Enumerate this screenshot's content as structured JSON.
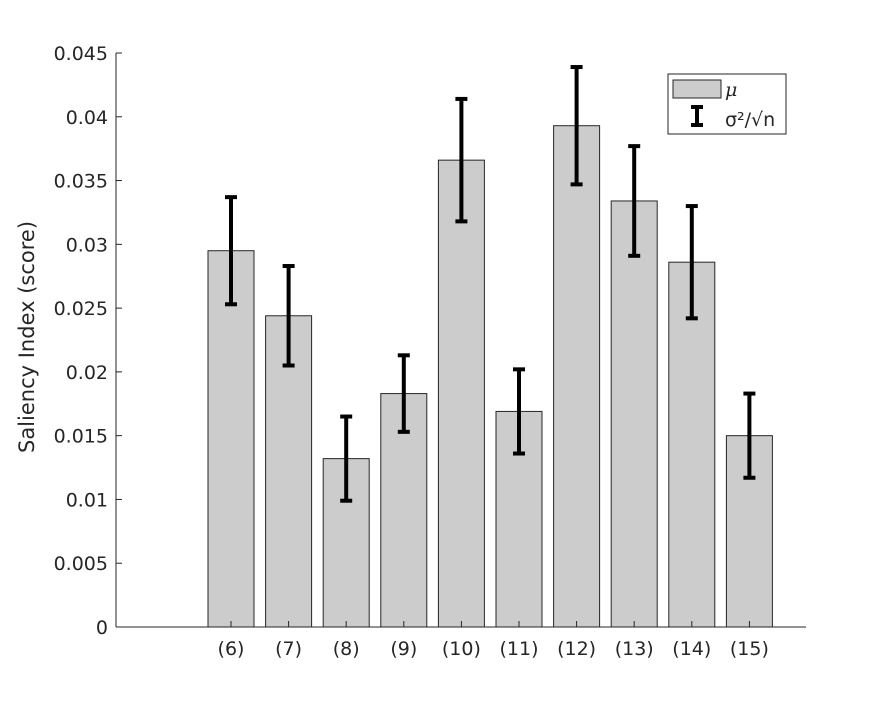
{
  "chart_data": {
    "type": "bar",
    "categories": [
      "(6)",
      "(7)",
      "(8)",
      "(9)",
      "(10)",
      "(11)",
      "(12)",
      "(13)",
      "(14)",
      "(15)"
    ],
    "series": [
      {
        "name": "μ",
        "values": [
          0.0295,
          0.0244,
          0.0132,
          0.0183,
          0.0366,
          0.0169,
          0.0393,
          0.0334,
          0.0286,
          0.015
        ],
        "error": [
          0.0042,
          0.0039,
          0.0033,
          0.003,
          0.0048,
          0.0033,
          0.0046,
          0.0043,
          0.0044,
          0.0033
        ],
        "color": "#cccccc"
      }
    ],
    "error_label": "σ²/√n",
    "ylabel": "Saliency Index (score)",
    "xlabel": "",
    "ylim": [
      0,
      0.045
    ],
    "yticks": [
      "0",
      "0.005",
      "0.01",
      "0.015",
      "0.02",
      "0.025",
      "0.03",
      "0.035",
      "0.04",
      "0.045"
    ],
    "ytick_values": [
      0,
      0.005,
      0.01,
      0.015,
      0.02,
      0.025,
      0.03,
      0.035,
      0.04,
      0.045
    ],
    "xlim_categories": [
      "",
      "(6)",
      "(7)",
      "(8)",
      "(9)",
      "(10)",
      "(11)",
      "(12)",
      "(13)",
      "(14)",
      "(15)"
    ],
    "grid": false,
    "legend": "top-right"
  }
}
